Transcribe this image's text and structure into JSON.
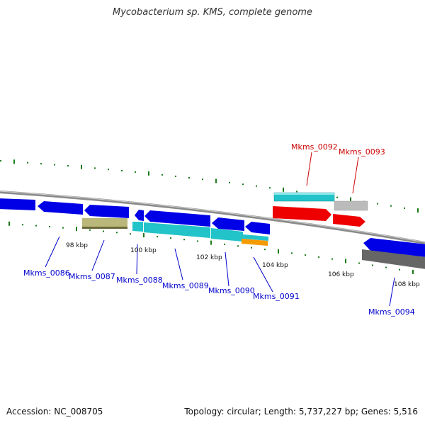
{
  "title": "Mycobacterium sp. KMS, complete genome",
  "footer": {
    "accession": "Accession: NC_008705",
    "summary": "Topology: circular; Length: 5,737,227 bp; Genes: 5,516"
  },
  "colors": {
    "background": "#ffffff",
    "backbone": "#8a8a8a",
    "forward_label": "#cc0000",
    "reverse_label": "#0000cc",
    "tick": "#1a7a1a",
    "blue_gene": "#0000e6",
    "cyan_gene": "#22c3c9",
    "olive_gene": "#b9b87a",
    "red_gene": "#ee0000",
    "gray_gene": "#bbbbbb",
    "dark_gray_gene": "#666666",
    "orange_gene": "#f59a00"
  },
  "scale_labels": [
    "98 kbp",
    "100 kbp",
    "102 kbp",
    "104 kbp",
    "106 kbp",
    "108 kbp"
  ],
  "gene_labels": {
    "forward": [
      "Mkms_0092",
      "Mkms_0093"
    ],
    "reverse": [
      "Mkms_0086",
      "Mkms_0087",
      "Mkms_0088",
      "Mkms_0089",
      "Mkms_0090",
      "Mkms_0091",
      "Mkms_0094"
    ]
  }
}
